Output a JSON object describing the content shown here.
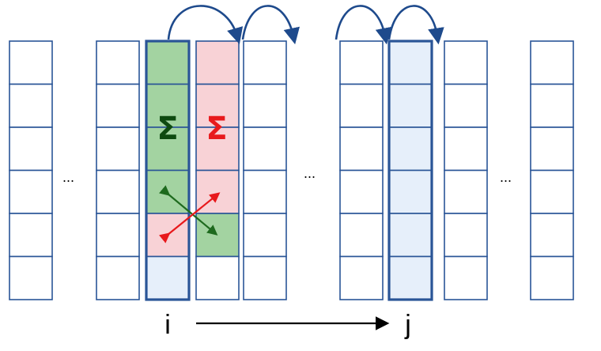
{
  "colors": {
    "border": "#2a5597",
    "green": "#a3d3a1",
    "red": "#f8d2d6",
    "blue": "#e6effa",
    "white": "#ffffff",
    "sigma_green": "#0e4a10",
    "sigma_red": "#e8191c",
    "swap_green": "#1e6a1e",
    "swap_red": "#e8191c",
    "curve": "#1e4a8c"
  },
  "ellipses": [
    "...",
    "...",
    "..."
  ],
  "symbols": {
    "sigma_left": "Σ",
    "sigma_right": "Σ"
  },
  "labels": {
    "i": "i",
    "j": "j"
  },
  "columns": [
    {
      "id": "c0",
      "fills": [
        "white",
        "white",
        "white",
        "white",
        "white",
        "white"
      ],
      "highlight": false
    },
    {
      "id": "c1",
      "fills": [
        "white",
        "white",
        "white",
        "white",
        "white",
        "white"
      ],
      "highlight": false
    },
    {
      "id": "col-i",
      "fills": [
        "green",
        "green",
        "green",
        "green",
        "red",
        "blue"
      ],
      "highlight": true
    },
    {
      "id": "col-i1",
      "fills": [
        "red",
        "red",
        "red",
        "red",
        "green",
        "white"
      ],
      "highlight": false
    },
    {
      "id": "c4",
      "fills": [
        "white",
        "white",
        "white",
        "white",
        "white",
        "white"
      ],
      "highlight": false
    },
    {
      "id": "c5",
      "fills": [
        "white",
        "white",
        "white",
        "white",
        "white",
        "white"
      ],
      "highlight": false
    },
    {
      "id": "col-j",
      "fills": [
        "blue",
        "blue",
        "blue",
        "blue",
        "blue",
        "blue"
      ],
      "highlight": true
    },
    {
      "id": "c7",
      "fills": [
        "white",
        "white",
        "white",
        "white",
        "white",
        "white"
      ],
      "highlight": false
    },
    {
      "id": "c8",
      "fills": [
        "white",
        "white",
        "white",
        "white",
        "white",
        "white"
      ],
      "highlight": false
    }
  ]
}
